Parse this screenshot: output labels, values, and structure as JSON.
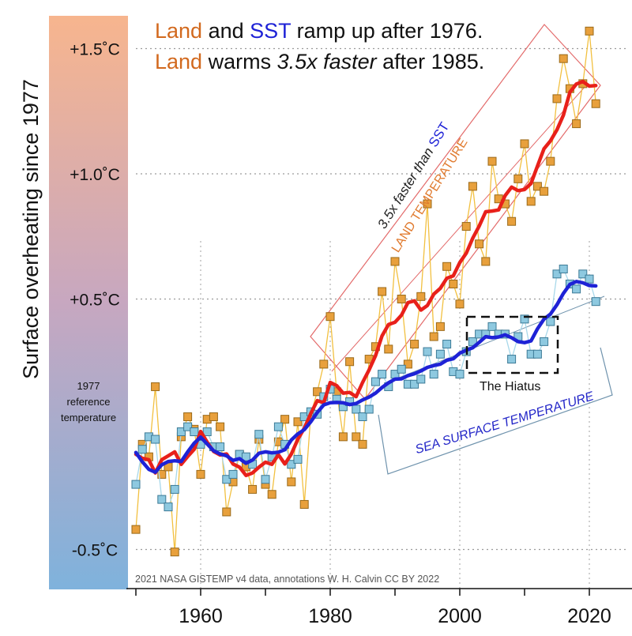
{
  "chart_data": {
    "type": "line",
    "title_lines": [
      {
        "parts": [
          {
            "text": "Land",
            "color": "#d2691e"
          },
          {
            "text": " and ",
            "color": "#111111"
          },
          {
            "text": "SST",
            "color": "#1e22d6"
          },
          {
            "text": " ramp up after 1976.",
            "color": "#111111"
          }
        ]
      },
      {
        "parts": [
          {
            "text": "Land",
            "color": "#d2691e"
          },
          {
            "text": " warms ",
            "color": "#111111"
          },
          {
            "text": "3.5x faster",
            "color": "#111111",
            "italic": true
          },
          {
            "text": " after 1985.",
            "color": "#111111"
          }
        ]
      }
    ],
    "ylabel": "Surface overheating since 1977",
    "y_tick_labels": [
      "+1.5˚C",
      "+1.0˚C",
      "+0.5˚C",
      "-0.5˚C"
    ],
    "y_tick_values": [
      1.5,
      1.0,
      0.5,
      -0.5
    ],
    "reference_label": [
      "1977",
      "reference",
      "temperature"
    ],
    "x_tick_labels": [
      "1960",
      "1980",
      "2000",
      "2020"
    ],
    "x_tick_values": [
      1960,
      1980,
      2000,
      2020
    ],
    "xlim": [
      1950,
      2024
    ],
    "ylim": [
      -0.65,
      1.72
    ],
    "grid": true,
    "annotations": {
      "land_band_label": "LAND TEMPERATURE",
      "faster_prefix": "3.5x faster than ",
      "faster_sst": "SST",
      "sst_band_label": "SEA SURFACE TEMPERATURE",
      "hiatus_label": "The Hiatus",
      "credit": "2021 NASA GISTEMP v4 data, annotations W. H. Calvin CC BY 2022"
    },
    "colors": {
      "land_markers": "#e8a03c",
      "land_line": "#f2c040",
      "land_smooth": "#e8201a",
      "sst_markers": "#8ec9e0",
      "sst_line": "#a8d8ea",
      "sst_smooth": "#1e22d6",
      "gradient_top": "#f7b58e",
      "gradient_bottom": "#7fb2dc",
      "land_band": "#e36a6a",
      "sst_band": "#6f93ad"
    },
    "series": [
      {
        "name": "Land",
        "x": [
          1950,
          1951,
          1952,
          1953,
          1954,
          1955,
          1956,
          1957,
          1958,
          1959,
          1960,
          1961,
          1962,
          1963,
          1964,
          1965,
          1966,
          1967,
          1968,
          1969,
          1970,
          1971,
          1972,
          1973,
          1974,
          1975,
          1976,
          1977,
          1978,
          1979,
          1980,
          1981,
          1982,
          1983,
          1984,
          1985,
          1986,
          1987,
          1988,
          1989,
          1990,
          1991,
          1992,
          1993,
          1994,
          1995,
          1996,
          1997,
          1998,
          1999,
          2000,
          2001,
          2002,
          2003,
          2004,
          2005,
          2006,
          2007,
          2008,
          2009,
          2010,
          2011,
          2012,
          2013,
          2014,
          2015,
          2016,
          2017,
          2018,
          2019,
          2020,
          2021
        ],
        "values": [
          -0.42,
          -0.08,
          -0.13,
          0.15,
          -0.2,
          -0.17,
          -0.51,
          -0.05,
          0.03,
          -0.02,
          -0.2,
          0.02,
          0.03,
          -0.01,
          -0.35,
          -0.23,
          -0.12,
          -0.17,
          -0.26,
          -0.06,
          -0.24,
          -0.28,
          -0.07,
          0.02,
          -0.23,
          0.01,
          -0.32,
          0.04,
          0.13,
          0.24,
          0.43,
          0.13,
          -0.05,
          0.25,
          -0.05,
          -0.08,
          0.26,
          0.31,
          0.53,
          0.3,
          0.65,
          0.5,
          0.24,
          0.32,
          0.51,
          0.88,
          0.35,
          0.39,
          0.63,
          0.56,
          0.48,
          0.79,
          0.95,
          0.72,
          0.65,
          1.05,
          0.9,
          0.88,
          0.81,
          0.98,
          1.12,
          0.89,
          0.95,
          0.93,
          1.05,
          1.3,
          1.46,
          1.34,
          1.2,
          1.36,
          1.57,
          1.28
        ]
      },
      {
        "name": "SST",
        "x": [
          1950,
          1951,
          1952,
          1953,
          1954,
          1955,
          1956,
          1957,
          1958,
          1959,
          1960,
          1961,
          1962,
          1963,
          1964,
          1965,
          1966,
          1967,
          1968,
          1969,
          1970,
          1971,
          1972,
          1973,
          1974,
          1975,
          1976,
          1977,
          1978,
          1979,
          1980,
          1981,
          1982,
          1983,
          1984,
          1985,
          1986,
          1987,
          1988,
          1989,
          1990,
          1991,
          1992,
          1993,
          1994,
          1995,
          1996,
          1997,
          1998,
          1999,
          2000,
          2001,
          2002,
          2003,
          2004,
          2005,
          2006,
          2007,
          2008,
          2009,
          2010,
          2011,
          2012,
          2013,
          2014,
          2015,
          2016,
          2017,
          2018,
          2019,
          2020,
          2021
        ],
        "values": [
          -0.24,
          -0.1,
          -0.05,
          -0.06,
          -0.3,
          -0.33,
          -0.26,
          -0.03,
          -0.01,
          -0.03,
          -0.08,
          -0.03,
          -0.09,
          -0.09,
          -0.22,
          -0.2,
          -0.12,
          -0.13,
          -0.16,
          -0.04,
          -0.22,
          -0.13,
          -0.01,
          -0.08,
          -0.16,
          -0.14,
          0.03,
          0.05,
          0.04,
          0.11,
          0.14,
          0.1,
          0.07,
          0.09,
          0.06,
          0.03,
          0.06,
          0.17,
          0.2,
          0.15,
          0.2,
          0.22,
          0.16,
          0.16,
          0.18,
          0.29,
          0.2,
          0.28,
          0.32,
          0.21,
          0.2,
          0.29,
          0.33,
          0.36,
          0.36,
          0.39,
          0.36,
          0.36,
          0.26,
          0.35,
          0.42,
          0.28,
          0.28,
          0.33,
          0.41,
          0.6,
          0.62,
          0.56,
          0.54,
          0.6,
          0.58,
          0.49
        ]
      }
    ]
  }
}
